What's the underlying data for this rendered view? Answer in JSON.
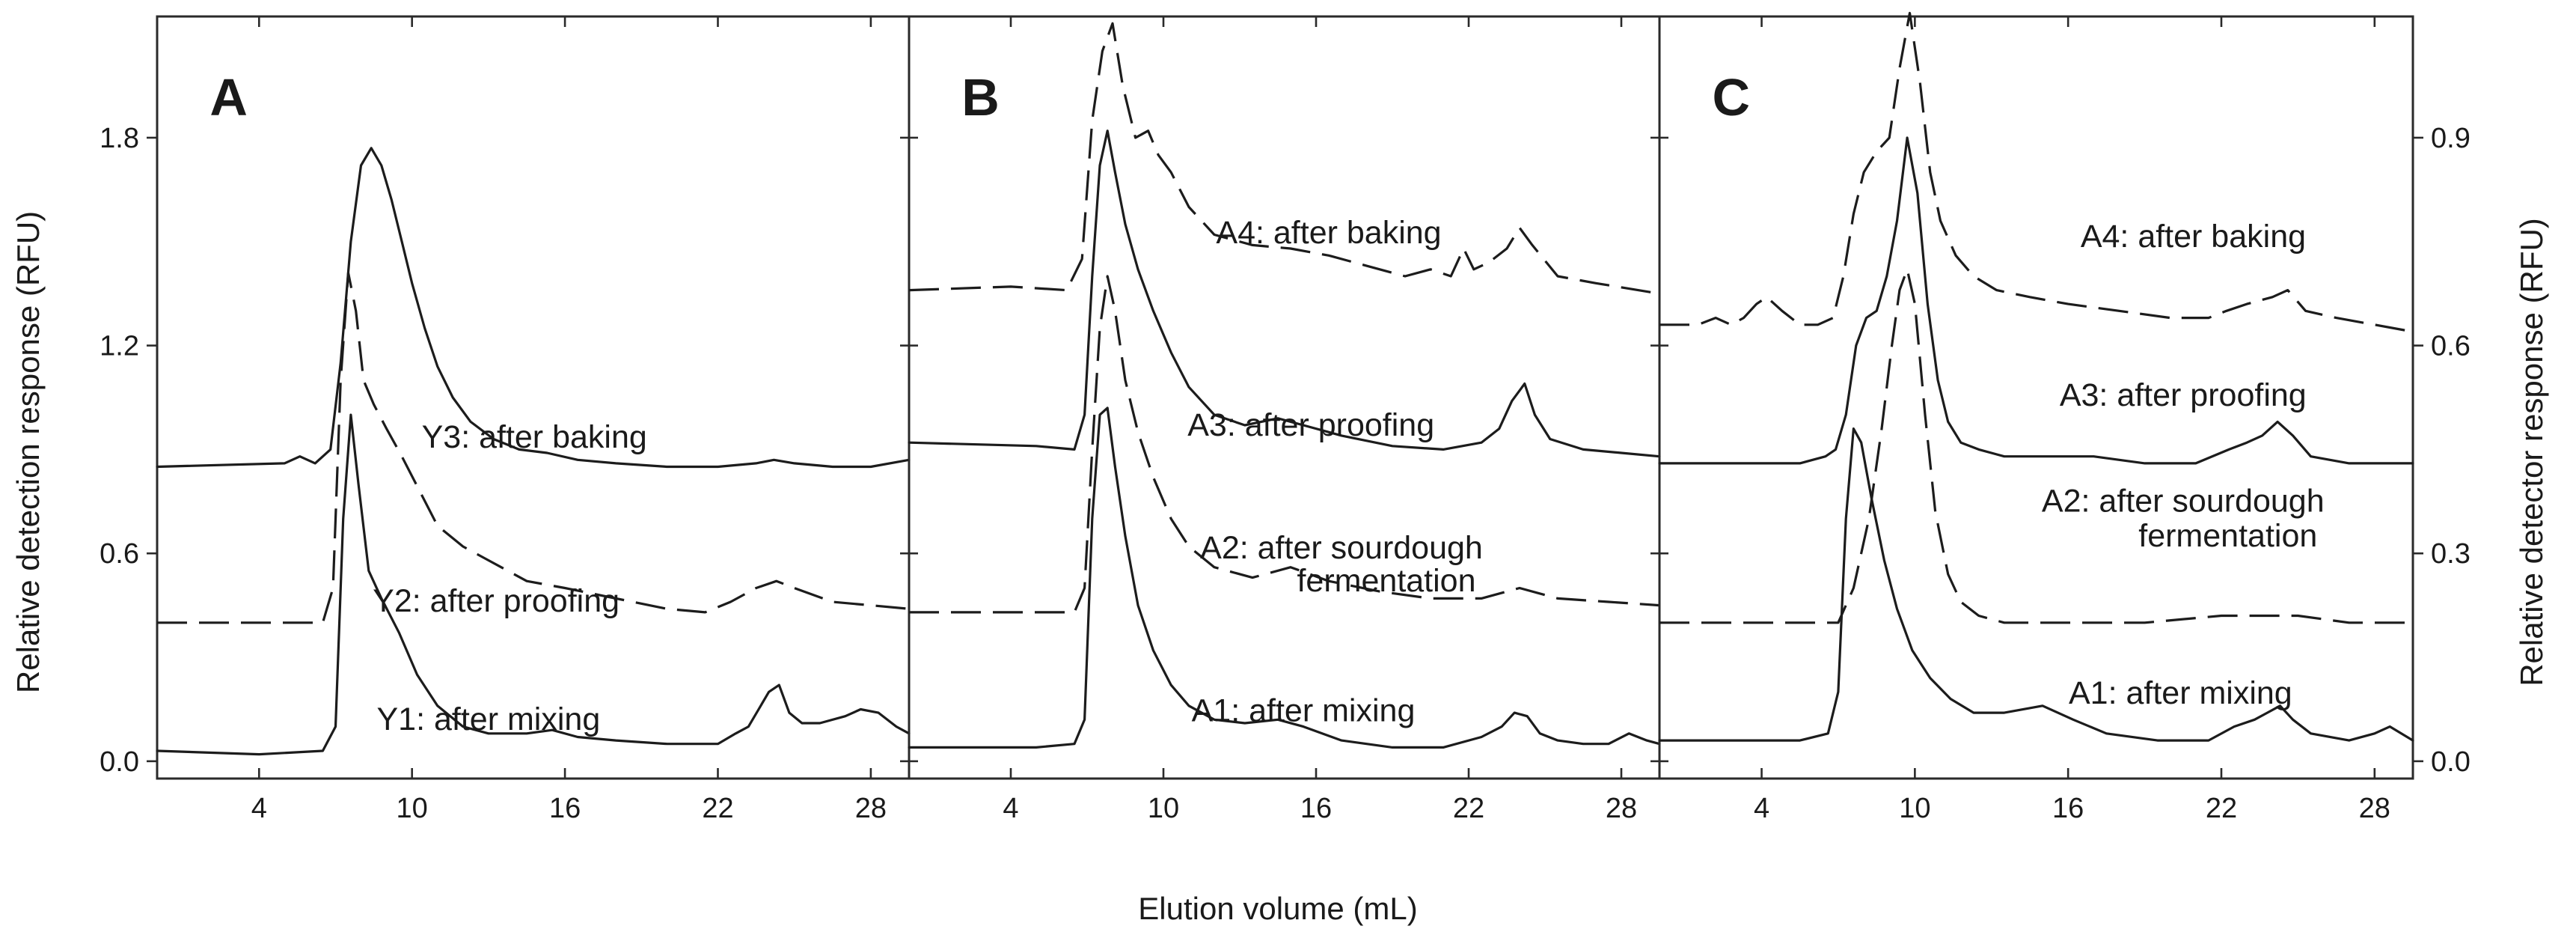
{
  "chart_data": {
    "type": "line",
    "title": "",
    "xlabel": "Elution volume (mL)",
    "ylabel_left": "Relative detection response (RFU)",
    "ylabel_right": "Relative detector response (RFU)",
    "xlim": [
      0,
      29.5
    ],
    "x_ticks": [
      "4",
      "10",
      "16",
      "22",
      "28"
    ],
    "panels": [
      {
        "letter": "A",
        "ylim": [
          -0.05,
          2.15
        ],
        "y_ticks": [
          "0.0",
          "0.6",
          "1.2",
          "1.8"
        ],
        "y_tick_values": [
          0,
          0.6,
          1.2,
          1.8
        ],
        "y_axis_side": "left",
        "series": [
          {
            "name": "Y3: after baking",
            "style": "solid",
            "x": [
              0,
              5,
              5.6,
              6.2,
              6.8,
              7.2,
              7.6,
              8.0,
              8.4,
              8.8,
              9.2,
              9.6,
              10.0,
              10.5,
              11.0,
              11.6,
              12.3,
              13.2,
              14.2,
              15.3,
              16.5,
              18.0,
              20.0,
              22.0,
              23.5,
              24.2,
              25,
              26.5,
              28,
              29.5
            ],
            "y": [
              0.85,
              0.86,
              0.88,
              0.86,
              0.9,
              1.15,
              1.5,
              1.72,
              1.77,
              1.72,
              1.62,
              1.5,
              1.38,
              1.25,
              1.14,
              1.05,
              0.98,
              0.93,
              0.9,
              0.89,
              0.87,
              0.86,
              0.85,
              0.85,
              0.86,
              0.87,
              0.86,
              0.85,
              0.85,
              0.87
            ]
          },
          {
            "name": "Y2: after proofing",
            "style": "dashed",
            "x": [
              0,
              6.5,
              6.9,
              7.2,
              7.5,
              7.8,
              8.1,
              8.5,
              9.0,
              9.6,
              10.3,
              11.0,
              12.0,
              13.0,
              14.5,
              16.0,
              18.0,
              20.0,
              21.5,
              22.5,
              23.5,
              24.3,
              25.0,
              26.5,
              28,
              29.5
            ],
            "y": [
              0.4,
              0.4,
              0.5,
              1.1,
              1.41,
              1.3,
              1.1,
              1.03,
              0.96,
              0.88,
              0.78,
              0.68,
              0.62,
              0.58,
              0.52,
              0.5,
              0.47,
              0.44,
              0.43,
              0.46,
              0.5,
              0.52,
              0.5,
              0.46,
              0.45,
              0.44
            ]
          },
          {
            "name": "Y1: after mixing",
            "style": "solid",
            "x": [
              0,
              4,
              6.5,
              7.0,
              7.3,
              7.6,
              7.9,
              8.3,
              8.8,
              9.5,
              10.2,
              11.0,
              12.0,
              13.0,
              14.5,
              15.5,
              16.5,
              18.0,
              20.0,
              22.0,
              22.7,
              23.2,
              23.6,
              24.0,
              24.4,
              24.8,
              25.3,
              26.0,
              27.0,
              27.6,
              28.3,
              29.0,
              29.5
            ],
            "y": [
              0.03,
              0.02,
              0.03,
              0.1,
              0.7,
              1.0,
              0.8,
              0.55,
              0.47,
              0.37,
              0.25,
              0.16,
              0.1,
              0.08,
              0.08,
              0.09,
              0.07,
              0.06,
              0.05,
              0.05,
              0.08,
              0.1,
              0.15,
              0.2,
              0.22,
              0.14,
              0.11,
              0.11,
              0.13,
              0.15,
              0.14,
              0.1,
              0.08
            ]
          }
        ]
      },
      {
        "letter": "B",
        "ylim": [
          -0.05,
          2.15
        ],
        "y_ticks": [],
        "y_tick_values": [
          0,
          0.6,
          1.2,
          1.8
        ],
        "y_axis_side": "none",
        "series": [
          {
            "name": "A4: after baking",
            "style": "dashed",
            "x": [
              0,
              4,
              6.2,
              6.8,
              7.2,
              7.6,
              8.0,
              8.4,
              8.9,
              9.4,
              9.8,
              10.3,
              11.0,
              12.0,
              13.5,
              15.0,
              16.5,
              18.0,
              19.5,
              20.5,
              21.3,
              21.8,
              22.2,
              22.8,
              23.5,
              24.0,
              24.5,
              25.5,
              27,
              29.5
            ],
            "y": [
              1.36,
              1.37,
              1.36,
              1.45,
              1.85,
              2.05,
              2.13,
              1.95,
              1.8,
              1.82,
              1.75,
              1.7,
              1.6,
              1.52,
              1.49,
              1.48,
              1.46,
              1.43,
              1.4,
              1.42,
              1.4,
              1.48,
              1.42,
              1.44,
              1.48,
              1.54,
              1.49,
              1.4,
              1.38,
              1.35
            ]
          },
          {
            "name": "A3: after proofing",
            "style": "solid",
            "x": [
              0,
              5,
              6.5,
              6.9,
              7.2,
              7.5,
              7.8,
              8.1,
              8.5,
              9.0,
              9.6,
              10.3,
              11.0,
              12.0,
              13.2,
              14.5,
              15.5,
              17.0,
              19.0,
              21.0,
              22.5,
              23.2,
              23.7,
              24.2,
              24.6,
              25.2,
              26.5,
              28,
              29.5
            ],
            "y": [
              0.92,
              0.91,
              0.9,
              1.0,
              1.4,
              1.72,
              1.82,
              1.7,
              1.55,
              1.42,
              1.3,
              1.18,
              1.08,
              1.0,
              0.97,
              0.99,
              0.97,
              0.94,
              0.91,
              0.9,
              0.92,
              0.96,
              1.04,
              1.09,
              1.0,
              0.93,
              0.9,
              0.89,
              0.88
            ]
          },
          {
            "name": "A2: after sourdough fermentation",
            "style": "dashed",
            "x": [
              0,
              5,
              6.5,
              6.9,
              7.2,
              7.5,
              7.8,
              8.1,
              8.5,
              9.0,
              9.6,
              10.3,
              11.0,
              12.0,
              13.5,
              15.0,
              16.5,
              18.5,
              20.5,
              22.5,
              24.0,
              25.5,
              27.5,
              29.5
            ],
            "y": [
              0.43,
              0.43,
              0.43,
              0.5,
              0.9,
              1.25,
              1.4,
              1.3,
              1.1,
              0.95,
              0.82,
              0.7,
              0.62,
              0.56,
              0.53,
              0.56,
              0.52,
              0.49,
              0.47,
              0.47,
              0.5,
              0.47,
              0.46,
              0.45
            ]
          },
          {
            "name": "A1: after mixing",
            "style": "solid",
            "x": [
              0,
              5,
              6.5,
              6.9,
              7.2,
              7.5,
              7.8,
              8.1,
              8.5,
              9.0,
              9.6,
              10.3,
              11.0,
              12.0,
              13.2,
              14.5,
              15.5,
              17.0,
              19.0,
              21.0,
              22.5,
              23.3,
              23.8,
              24.3,
              24.8,
              25.5,
              26.5,
              27.5,
              28.3,
              29.0,
              29.5
            ],
            "y": [
              0.04,
              0.04,
              0.05,
              0.12,
              0.7,
              1.0,
              1.02,
              0.85,
              0.65,
              0.45,
              0.32,
              0.22,
              0.16,
              0.12,
              0.11,
              0.12,
              0.1,
              0.06,
              0.04,
              0.04,
              0.07,
              0.1,
              0.14,
              0.13,
              0.08,
              0.06,
              0.05,
              0.05,
              0.08,
              0.06,
              0.05
            ]
          }
        ]
      },
      {
        "letter": "C",
        "ylim": [
          -0.025,
          1.075
        ],
        "y_ticks": [
          "0.0",
          "0.3",
          "0.6",
          "0.9"
        ],
        "y_tick_values": [
          0,
          0.3,
          0.6,
          0.9
        ],
        "y_axis_side": "right",
        "series": [
          {
            "name": "A4: after baking",
            "style": "dashed",
            "x": [
              0,
              1.5,
              2.2,
              2.8,
              3.3,
              3.8,
              4.2,
              4.8,
              5.5,
              6.2,
              6.8,
              7.2,
              7.6,
              8.0,
              8.5,
              9.0,
              9.4,
              9.8,
              10.2,
              10.6,
              11.0,
              11.6,
              12.3,
              13.2,
              14.5,
              16.0,
              18.0,
              20.0,
              21.5,
              22.2,
              23.0,
              24.0,
              24.6,
              25.3,
              26.5,
              28,
              29.5
            ],
            "y": [
              0.63,
              0.63,
              0.64,
              0.63,
              0.64,
              0.66,
              0.67,
              0.65,
              0.63,
              0.63,
              0.64,
              0.7,
              0.79,
              0.85,
              0.88,
              0.9,
              1.0,
              1.08,
              0.98,
              0.85,
              0.78,
              0.73,
              0.7,
              0.68,
              0.67,
              0.66,
              0.65,
              0.64,
              0.64,
              0.65,
              0.66,
              0.67,
              0.68,
              0.65,
              0.64,
              0.63,
              0.62
            ]
          },
          {
            "name": "A3: after proofing",
            "style": "solid",
            "x": [
              0,
              5.5,
              6.5,
              6.9,
              7.3,
              7.7,
              8.1,
              8.5,
              8.9,
              9.3,
              9.7,
              10.1,
              10.5,
              10.9,
              11.3,
              11.8,
              12.5,
              13.5,
              15.0,
              17.0,
              19.0,
              21.0,
              22.3,
              23.0,
              23.6,
              24.2,
              24.8,
              25.5,
              27,
              29.5
            ],
            "y": [
              0.43,
              0.43,
              0.44,
              0.45,
              0.5,
              0.6,
              0.64,
              0.65,
              0.7,
              0.78,
              0.9,
              0.82,
              0.66,
              0.55,
              0.49,
              0.46,
              0.45,
              0.44,
              0.44,
              0.44,
              0.43,
              0.43,
              0.45,
              0.46,
              0.47,
              0.49,
              0.47,
              0.44,
              0.43,
              0.43
            ]
          },
          {
            "name": "A2: after sourdough fermentation",
            "style": "dashed",
            "x": [
              0,
              6.0,
              7.0,
              7.6,
              8.2,
              8.7,
              9.1,
              9.4,
              9.7,
              10.0,
              10.4,
              10.8,
              11.3,
              11.8,
              12.5,
              13.5,
              15.0,
              17.0,
              19.0,
              22.0,
              25.0,
              27.0,
              29.5
            ],
            "y": [
              0.2,
              0.2,
              0.2,
              0.25,
              0.35,
              0.48,
              0.6,
              0.68,
              0.71,
              0.66,
              0.5,
              0.36,
              0.27,
              0.23,
              0.21,
              0.2,
              0.2,
              0.2,
              0.2,
              0.21,
              0.21,
              0.2,
              0.2
            ]
          },
          {
            "name": "A1: after mixing",
            "style": "solid",
            "x": [
              0,
              5.5,
              6.6,
              7.0,
              7.3,
              7.6,
              7.9,
              8.3,
              8.8,
              9.3,
              9.9,
              10.6,
              11.4,
              12.3,
              13.5,
              15.0,
              16.2,
              17.5,
              19.5,
              21.5,
              22.5,
              23.3,
              23.8,
              24.3,
              24.8,
              25.5,
              27.0,
              28.0,
              28.6,
              29.5
            ],
            "y": [
              0.03,
              0.03,
              0.04,
              0.1,
              0.35,
              0.48,
              0.46,
              0.38,
              0.29,
              0.22,
              0.16,
              0.12,
              0.09,
              0.07,
              0.07,
              0.08,
              0.06,
              0.04,
              0.03,
              0.03,
              0.05,
              0.06,
              0.07,
              0.08,
              0.06,
              0.04,
              0.03,
              0.04,
              0.05,
              0.03
            ]
          }
        ]
      }
    ]
  }
}
